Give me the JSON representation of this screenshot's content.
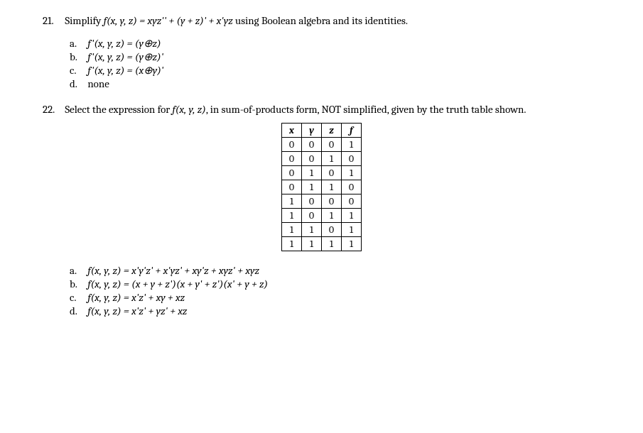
{
  "q21": {
    "number": "21.",
    "text_pre": "Simplify ",
    "func": "f(x, y, z) = xyz'' + (y + z)' + x'yz",
    "text_post": " using Boolean algebra and its identities.",
    "options": {
      "a": {
        "letter": "a.",
        "expr": "f'(x, y, z) = (y⊕z)"
      },
      "b": {
        "letter": "b.",
        "expr": "f'(x, y, z) = (y⊕z)'"
      },
      "c": {
        "letter": "c.",
        "expr": "f'(x, y, z) = (x⊕y)'"
      },
      "d": {
        "letter": "d.",
        "expr": "none"
      }
    }
  },
  "q22": {
    "number": "22.",
    "text_pre": "Select the expression for ",
    "func": "f(x, y, z)",
    "text_mid": ", in sum-of-products form, NOT simplified, given by the truth table shown.",
    "table": {
      "headers": [
        "x",
        "y",
        "z",
        "f"
      ],
      "rows": [
        [
          "0",
          "0",
          "0",
          "1"
        ],
        [
          "0",
          "0",
          "1",
          "0"
        ],
        [
          "0",
          "1",
          "0",
          "1"
        ],
        [
          "0",
          "1",
          "1",
          "0"
        ],
        [
          "1",
          "0",
          "0",
          "0"
        ],
        [
          "1",
          "0",
          "1",
          "1"
        ],
        [
          "1",
          "1",
          "0",
          "1"
        ],
        [
          "1",
          "1",
          "1",
          "1"
        ]
      ]
    },
    "options": {
      "a": {
        "letter": "a.",
        "expr": "f(x, y, z) = x'y'z' + x'yz' + xy'z + xyz' + xyz"
      },
      "b": {
        "letter": "b.",
        "expr": "f(x, y, z) = (x + y + z')(x + y' + z')(x' + y + z)"
      },
      "c": {
        "letter": "c.",
        "expr": "f(x, y, z) = x'z' + xy + xz"
      },
      "d": {
        "letter": "d.",
        "expr": "f(x, y, z) = x'z' + yz' + xz"
      }
    }
  }
}
